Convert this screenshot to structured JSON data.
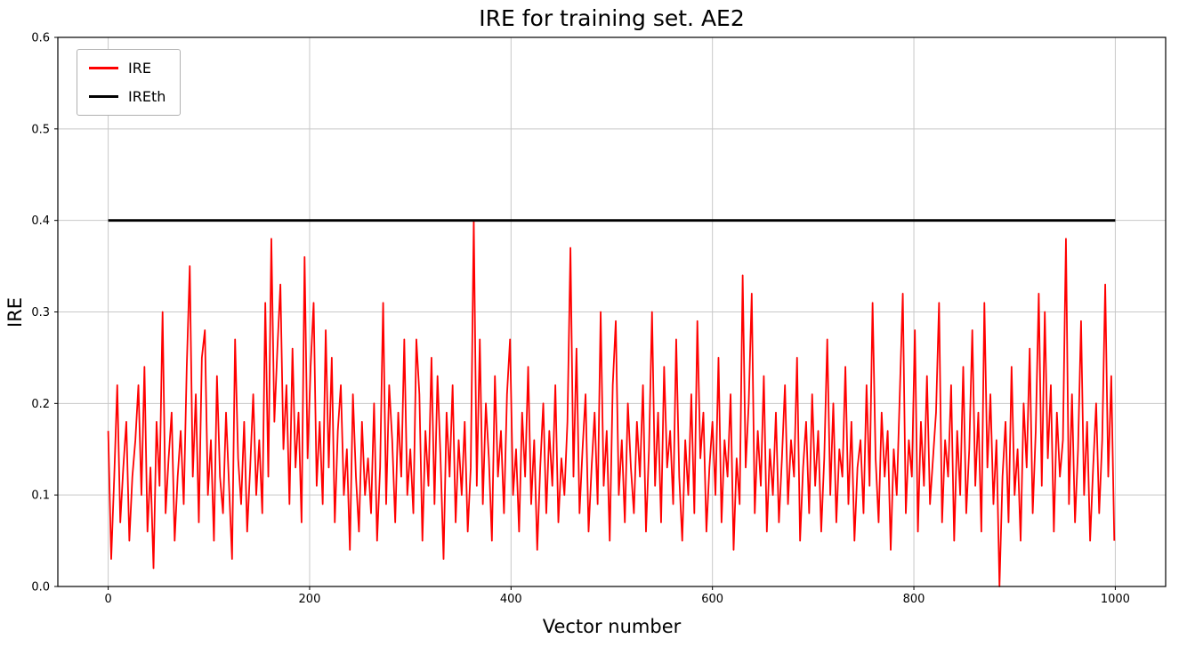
{
  "chart_data": {
    "type": "line",
    "title": "IRE for training set. AE2",
    "xlabel": "Vector number",
    "ylabel": "IRE",
    "xlim": [
      -50,
      1050
    ],
    "ylim": [
      0.0,
      0.6
    ],
    "xticks": [
      0,
      200,
      400,
      600,
      800,
      1000
    ],
    "yticks": [
      0.0,
      0.1,
      0.2,
      0.3,
      0.4,
      0.5,
      0.6
    ],
    "grid": true,
    "grid_color": "#c8c8c8",
    "legend": {
      "position": "upper-left",
      "entries": [
        {
          "label": "IRE",
          "color": "#ff0000"
        },
        {
          "label": "IREth",
          "color": "#000000"
        }
      ]
    },
    "series": [
      {
        "name": "IRE",
        "color": "#ff0000",
        "x_start": 0,
        "x_step": 3,
        "values": [
          0.17,
          0.03,
          0.12,
          0.22,
          0.07,
          0.13,
          0.18,
          0.05,
          0.12,
          0.16,
          0.22,
          0.1,
          0.24,
          0.06,
          0.13,
          0.02,
          0.18,
          0.11,
          0.3,
          0.08,
          0.14,
          0.19,
          0.05,
          0.12,
          0.17,
          0.09,
          0.24,
          0.35,
          0.12,
          0.21,
          0.07,
          0.25,
          0.28,
          0.1,
          0.16,
          0.05,
          0.23,
          0.12,
          0.08,
          0.19,
          0.11,
          0.03,
          0.27,
          0.14,
          0.09,
          0.18,
          0.06,
          0.13,
          0.21,
          0.1,
          0.16,
          0.08,
          0.31,
          0.12,
          0.38,
          0.18,
          0.26,
          0.33,
          0.15,
          0.22,
          0.09,
          0.26,
          0.13,
          0.19,
          0.07,
          0.36,
          0.14,
          0.24,
          0.31,
          0.11,
          0.18,
          0.09,
          0.28,
          0.13,
          0.25,
          0.07,
          0.17,
          0.22,
          0.1,
          0.15,
          0.04,
          0.21,
          0.12,
          0.06,
          0.18,
          0.1,
          0.14,
          0.08,
          0.2,
          0.05,
          0.13,
          0.31,
          0.09,
          0.22,
          0.16,
          0.07,
          0.19,
          0.12,
          0.27,
          0.1,
          0.15,
          0.08,
          0.27,
          0.21,
          0.05,
          0.17,
          0.11,
          0.25,
          0.09,
          0.23,
          0.14,
          0.03,
          0.19,
          0.12,
          0.22,
          0.07,
          0.16,
          0.1,
          0.18,
          0.06,
          0.13,
          0.4,
          0.11,
          0.27,
          0.09,
          0.2,
          0.14,
          0.05,
          0.23,
          0.12,
          0.17,
          0.08,
          0.21,
          0.27,
          0.1,
          0.15,
          0.06,
          0.19,
          0.12,
          0.24,
          0.09,
          0.16,
          0.04,
          0.13,
          0.2,
          0.08,
          0.17,
          0.11,
          0.22,
          0.07,
          0.14,
          0.1,
          0.18,
          0.37,
          0.12,
          0.26,
          0.08,
          0.15,
          0.21,
          0.06,
          0.13,
          0.19,
          0.09,
          0.3,
          0.11,
          0.17,
          0.05,
          0.22,
          0.29,
          0.1,
          0.16,
          0.07,
          0.2,
          0.13,
          0.08,
          0.18,
          0.12,
          0.22,
          0.06,
          0.15,
          0.3,
          0.11,
          0.19,
          0.07,
          0.24,
          0.13,
          0.17,
          0.09,
          0.27,
          0.12,
          0.05,
          0.16,
          0.1,
          0.21,
          0.08,
          0.29,
          0.14,
          0.19,
          0.06,
          0.13,
          0.18,
          0.1,
          0.25,
          0.07,
          0.16,
          0.12,
          0.21,
          0.04,
          0.14,
          0.09,
          0.34,
          0.13,
          0.2,
          0.32,
          0.08,
          0.17,
          0.11,
          0.23,
          0.06,
          0.15,
          0.1,
          0.19,
          0.07,
          0.14,
          0.22,
          0.09,
          0.16,
          0.12,
          0.25,
          0.05,
          0.13,
          0.18,
          0.08,
          0.21,
          0.11,
          0.17,
          0.06,
          0.14,
          0.27,
          0.1,
          0.2,
          0.07,
          0.15,
          0.12,
          0.24,
          0.09,
          0.18,
          0.05,
          0.13,
          0.16,
          0.08,
          0.22,
          0.11,
          0.31,
          0.14,
          0.07,
          0.19,
          0.12,
          0.17,
          0.04,
          0.15,
          0.1,
          0.21,
          0.32,
          0.08,
          0.16,
          0.12,
          0.28,
          0.06,
          0.18,
          0.11,
          0.23,
          0.09,
          0.14,
          0.19,
          0.31,
          0.07,
          0.16,
          0.12,
          0.22,
          0.05,
          0.17,
          0.1,
          0.24,
          0.08,
          0.15,
          0.28,
          0.11,
          0.19,
          0.06,
          0.31,
          0.13,
          0.21,
          0.09,
          0.16,
          0.0,
          0.12,
          0.18,
          0.07,
          0.24,
          0.1,
          0.15,
          0.05,
          0.2,
          0.13,
          0.26,
          0.08,
          0.17,
          0.32,
          0.11,
          0.3,
          0.14,
          0.22,
          0.06,
          0.19,
          0.12,
          0.16,
          0.38,
          0.09,
          0.21,
          0.07,
          0.15,
          0.29,
          0.1,
          0.18,
          0.05,
          0.13,
          0.2,
          0.08,
          0.16,
          0.33,
          0.12,
          0.23,
          0.05
        ]
      },
      {
        "name": "IREth",
        "color": "#000000",
        "x": [
          0,
          1000
        ],
        "values": [
          0.4,
          0.4
        ]
      }
    ]
  }
}
